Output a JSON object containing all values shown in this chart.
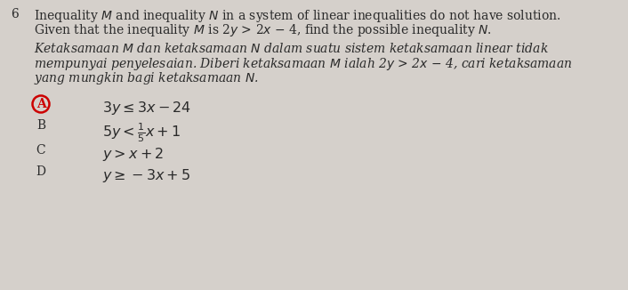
{
  "background_color": "#d5d0cb",
  "question_number": "6",
  "circle_color": "#cc0000",
  "text_color": "#2a2a2a",
  "eng1": "Inequality $M$ and inequality $N$ in a system of linear inequalities do not have solution.",
  "eng2": "Given that the inequality $M$ is 2$y$ > 2$x$ − 4, find the possible inequality $N$.",
  "mal1": "Ketaksamaan $M$ dan ketaksamaan $N$ dalam suatu sistem ketaksamaan linear tidak",
  "mal2": "mempunyai penyelesaian. Diberi ketaksamaan $M$ ialah 2$y$ > 2$x$ − 4, cari ketaksamaan",
  "mal3": "yang mungkin bagi ketaksamaan $N$.",
  "opt_A_label": "A",
  "opt_A": "3$y$ ≤ 3$x$ − 24",
  "opt_B_label": "B",
  "opt_B": "5$y$ < $\\frac{1}{5}$$x$ + 1",
  "opt_C_label": "C",
  "opt_C": "$y$ > $x$ + 2",
  "opt_D_label": "D",
  "opt_D": "$y$ ≥ −3$x$ + 5"
}
